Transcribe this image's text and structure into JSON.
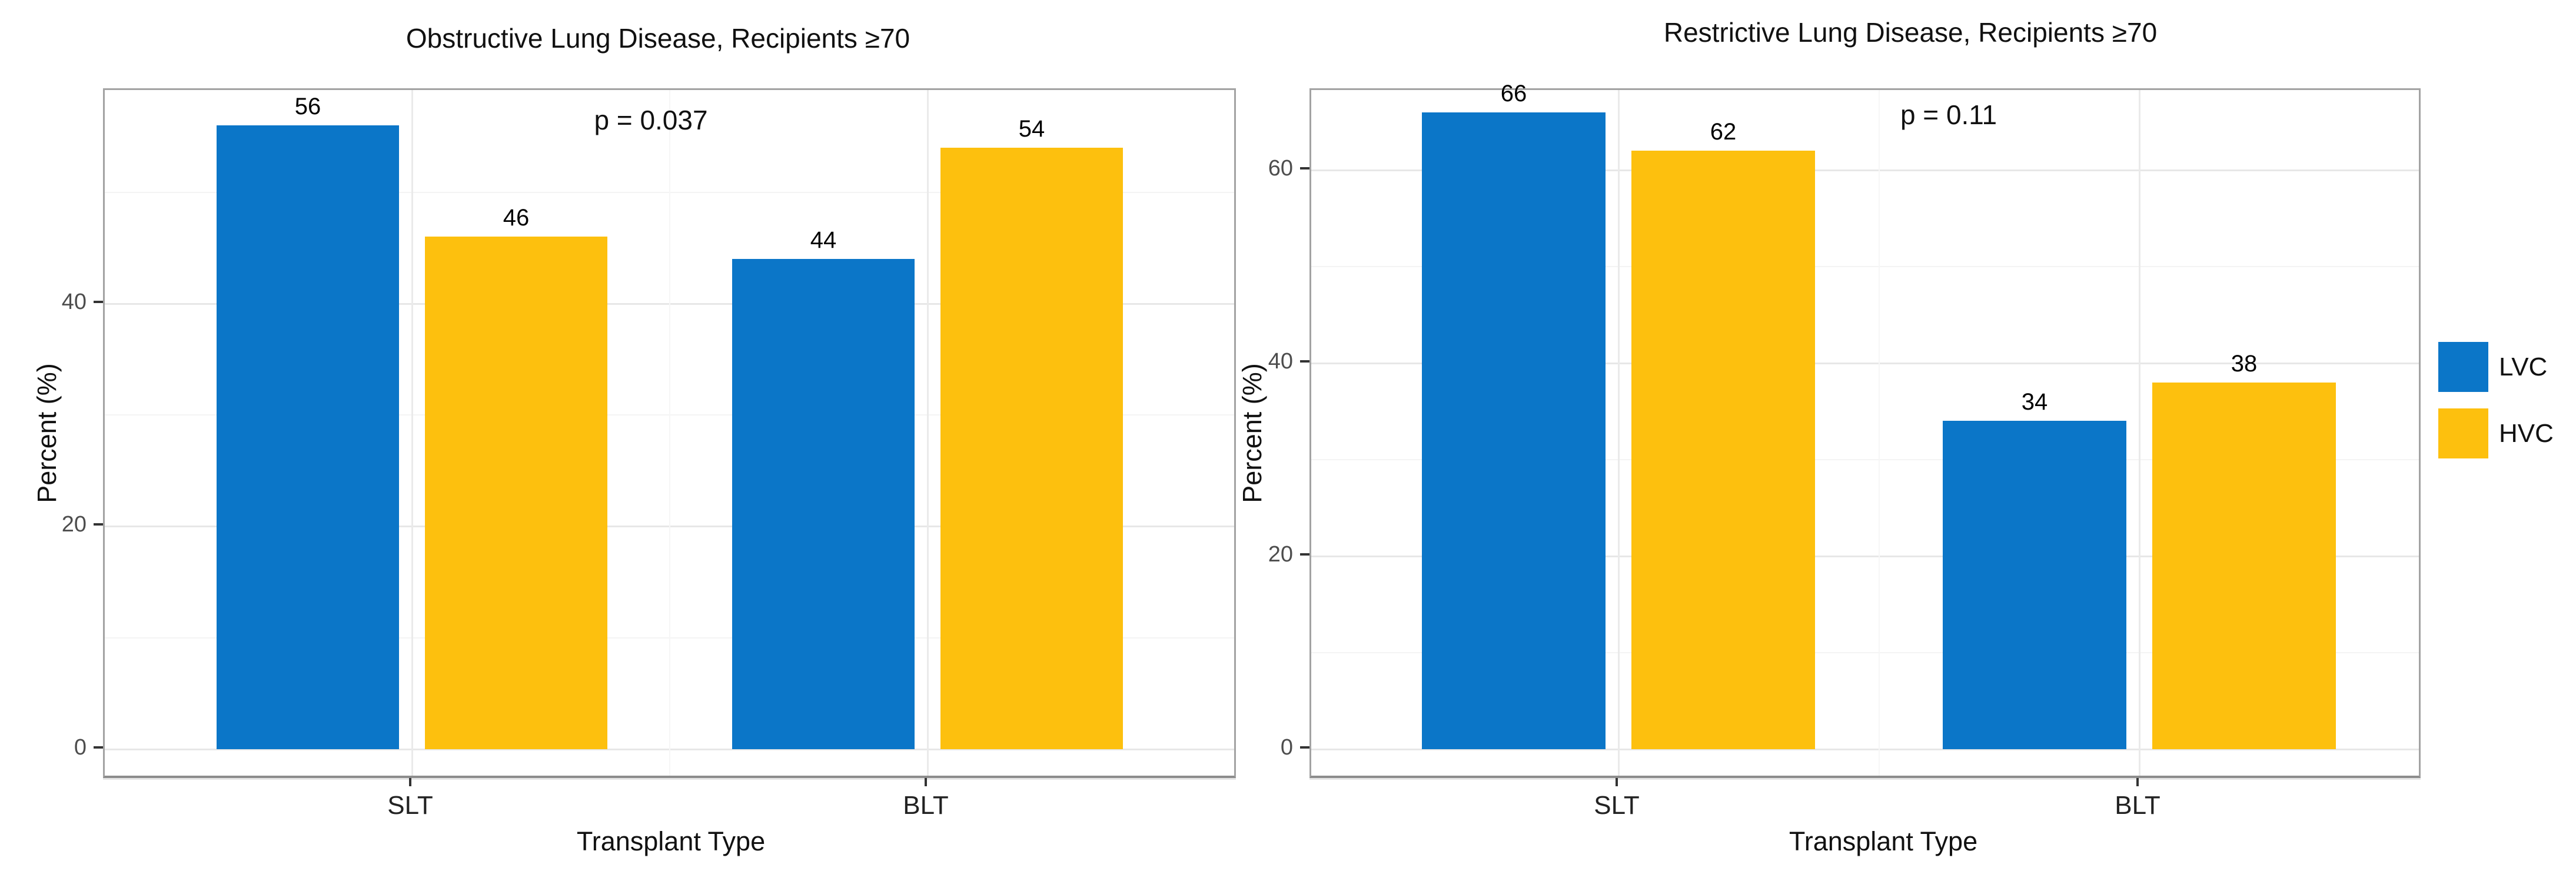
{
  "chart_data": [
    {
      "type": "bar",
      "title": "Obstructive Lung Disease, Recipients ≥70",
      "annotation": "p = 0.037",
      "xlabel": "Transplant Type",
      "ylabel": "Percent (%)",
      "categories": [
        "SLT",
        "BLT"
      ],
      "series": [
        {
          "name": "LVC",
          "color": "#0B76C8",
          "values": [
            56,
            44
          ]
        },
        {
          "name": "HVC",
          "color": "#FDC00E",
          "values": [
            46,
            54
          ]
        }
      ],
      "ylim": [
        0,
        59
      ],
      "y_major_ticks": [
        0,
        20,
        40
      ],
      "y_minor_ticks": [
        10,
        30,
        50
      ],
      "grid": "on",
      "bar_value_labels": [
        [
          56,
          44
        ],
        [
          46,
          54
        ]
      ]
    },
    {
      "type": "bar",
      "title": "Restrictive Lung Disease, Recipients ≥70",
      "annotation": "p = 0.11",
      "xlabel": "Transplant Type",
      "ylabel": "Percent (%)",
      "categories": [
        "SLT",
        "BLT"
      ],
      "series": [
        {
          "name": "LVC",
          "color": "#0B76C8",
          "values": [
            66,
            34
          ]
        },
        {
          "name": "HVC",
          "color": "#FDC00E",
          "values": [
            62,
            38
          ]
        }
      ],
      "ylim": [
        0,
        68
      ],
      "y_major_ticks": [
        0,
        20,
        40,
        60
      ],
      "y_minor_ticks": [
        10,
        30,
        50
      ],
      "grid": "on",
      "bar_value_labels": [
        [
          66,
          34
        ],
        [
          62,
          38
        ]
      ]
    }
  ],
  "legend": {
    "position": "right",
    "items": [
      {
        "label": "LVC",
        "color": "#0B76C8"
      },
      {
        "label": "HVC",
        "color": "#FDC00E"
      }
    ]
  }
}
